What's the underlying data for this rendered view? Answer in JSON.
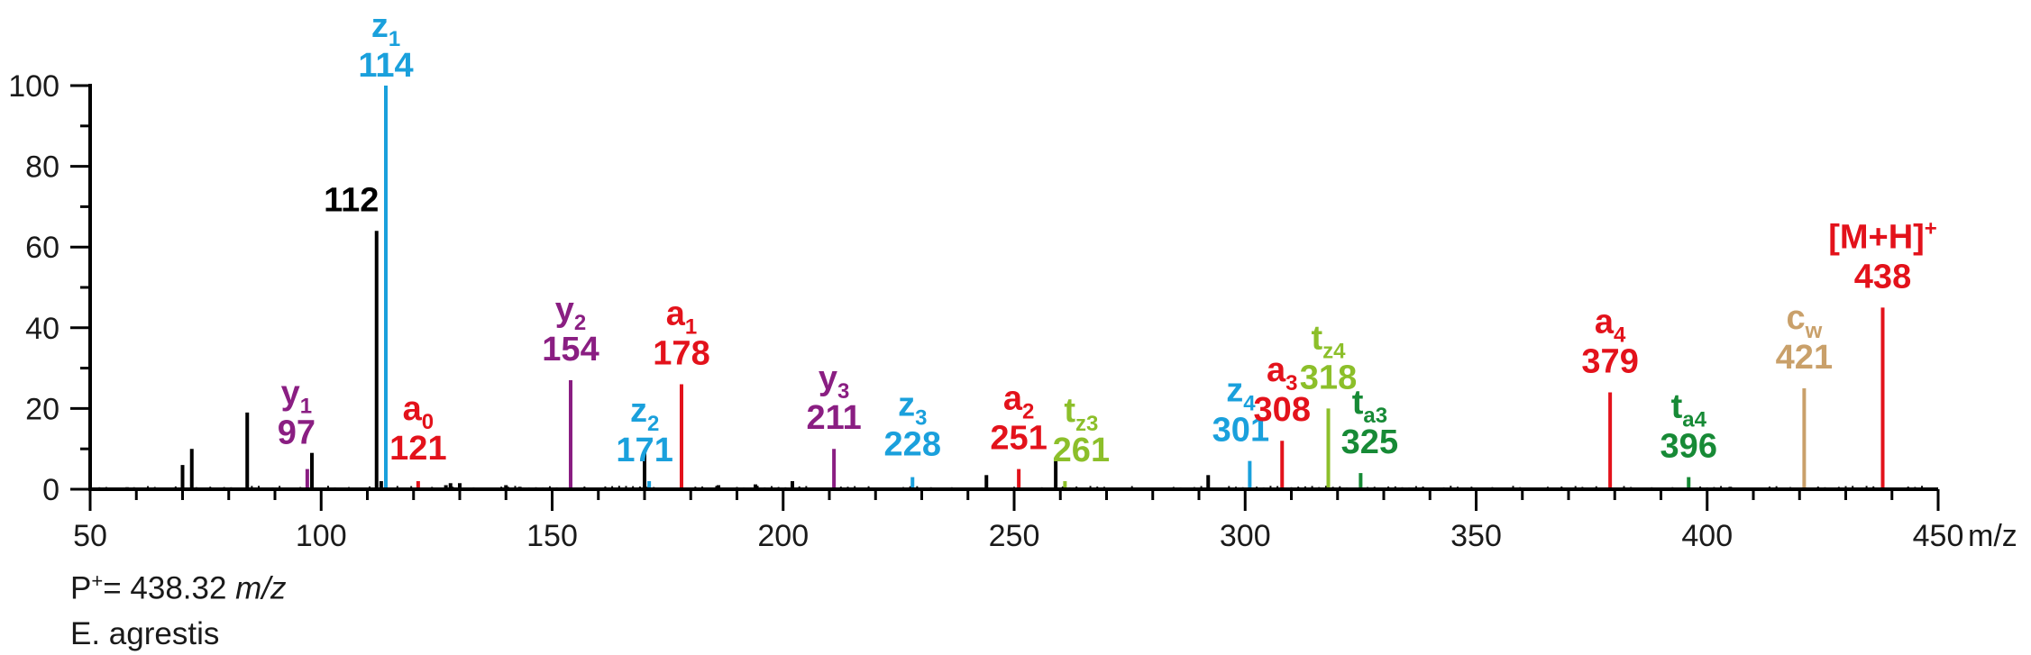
{
  "colors": {
    "axis": "#000000",
    "noise": "#000000",
    "z": "#1aa0dc",
    "y": "#8a1e82",
    "a": "#e3121b",
    "tz": "#8cbf2a",
    "ta": "#178a36",
    "c": "#c9a06a"
  },
  "notes": {
    "precursor_prefix": "P",
    "precursor_sup": "+",
    "precursor_value": "= 438.32 ",
    "precursor_unit": "m/z",
    "species": "E. agrestis"
  },
  "chart_data": {
    "type": "bar",
    "xlabel": "m/z",
    "ylabel": "",
    "xlim": [
      50,
      450
    ],
    "ylim": [
      0,
      100
    ],
    "x_ticks": [
      50,
      100,
      150,
      200,
      250,
      300,
      350,
      400,
      450
    ],
    "y_ticks": [
      0,
      20,
      40,
      60,
      80,
      100
    ],
    "grid": false,
    "peaks": [
      {
        "mz": 114,
        "intensity": 100,
        "ion": "z",
        "sub": "1",
        "label": "114",
        "color": "z"
      },
      {
        "mz": 112,
        "intensity": 64,
        "ion": "",
        "sub": "",
        "label": "112",
        "color": "noise"
      },
      {
        "mz": 97,
        "intensity": 5,
        "ion": "y",
        "sub": "1",
        "label": "97",
        "color": "y"
      },
      {
        "mz": 121,
        "intensity": 2,
        "ion": "a",
        "sub": "0",
        "label": "121",
        "color": "a"
      },
      {
        "mz": 154,
        "intensity": 27,
        "ion": "y",
        "sub": "2",
        "label": "154",
        "color": "y"
      },
      {
        "mz": 178,
        "intensity": 26,
        "ion": "a",
        "sub": "1",
        "label": "178",
        "color": "a"
      },
      {
        "mz": 171,
        "intensity": 2,
        "ion": "z",
        "sub": "2",
        "label": "171",
        "color": "z"
      },
      {
        "mz": 211,
        "intensity": 10,
        "ion": "y",
        "sub": "3",
        "label": "211",
        "color": "y"
      },
      {
        "mz": 228,
        "intensity": 3,
        "ion": "z",
        "sub": "3",
        "label": "228",
        "color": "z"
      },
      {
        "mz": 251,
        "intensity": 5,
        "ion": "a",
        "sub": "2",
        "label": "251",
        "color": "a"
      },
      {
        "mz": 261,
        "intensity": 2,
        "ion": "t",
        "sub": "z3",
        "label": "261",
        "color": "tz"
      },
      {
        "mz": 301,
        "intensity": 7,
        "ion": "z",
        "sub": "4",
        "label": "301",
        "color": "z"
      },
      {
        "mz": 308,
        "intensity": 12,
        "ion": "a",
        "sub": "3",
        "label": "308",
        "color": "a"
      },
      {
        "mz": 318,
        "intensity": 20,
        "ion": "t",
        "sub": "z4",
        "label": "318",
        "color": "tz"
      },
      {
        "mz": 325,
        "intensity": 4,
        "ion": "t",
        "sub": "a3",
        "label": "325",
        "color": "ta"
      },
      {
        "mz": 379,
        "intensity": 24,
        "ion": "a",
        "sub": "4",
        "label": "379",
        "color": "a"
      },
      {
        "mz": 396,
        "intensity": 3,
        "ion": "t",
        "sub": "a4",
        "label": "396",
        "color": "ta"
      },
      {
        "mz": 421,
        "intensity": 25,
        "ion": "c",
        "sub": "w",
        "label": "421",
        "color": "c"
      },
      {
        "mz": 438,
        "intensity": 45,
        "ion": "[M+H]",
        "sub": "",
        "sup": "+",
        "label": "438",
        "color": "a"
      }
    ],
    "noise_peaks": [
      {
        "mz": 58,
        "intensity": 0.5
      },
      {
        "mz": 62,
        "intensity": 0.4
      },
      {
        "mz": 65,
        "intensity": 0.4
      },
      {
        "mz": 70,
        "intensity": 6
      },
      {
        "mz": 72,
        "intensity": 10
      },
      {
        "mz": 84,
        "intensity": 19
      },
      {
        "mz": 98,
        "intensity": 9
      },
      {
        "mz": 113,
        "intensity": 2
      },
      {
        "mz": 127,
        "intensity": 1
      },
      {
        "mz": 128,
        "intensity": 1.5
      },
      {
        "mz": 130,
        "intensity": 1.5
      },
      {
        "mz": 140,
        "intensity": 1
      },
      {
        "mz": 143,
        "intensity": 0.6
      },
      {
        "mz": 170,
        "intensity": 9
      },
      {
        "mz": 186,
        "intensity": 1
      },
      {
        "mz": 194,
        "intensity": 1.2
      },
      {
        "mz": 202,
        "intensity": 2
      },
      {
        "mz": 244,
        "intensity": 3.5
      },
      {
        "mz": 259,
        "intensity": 7
      },
      {
        "mz": 292,
        "intensity": 3.5
      },
      {
        "mz": 405,
        "intensity": 0.6
      }
    ]
  }
}
